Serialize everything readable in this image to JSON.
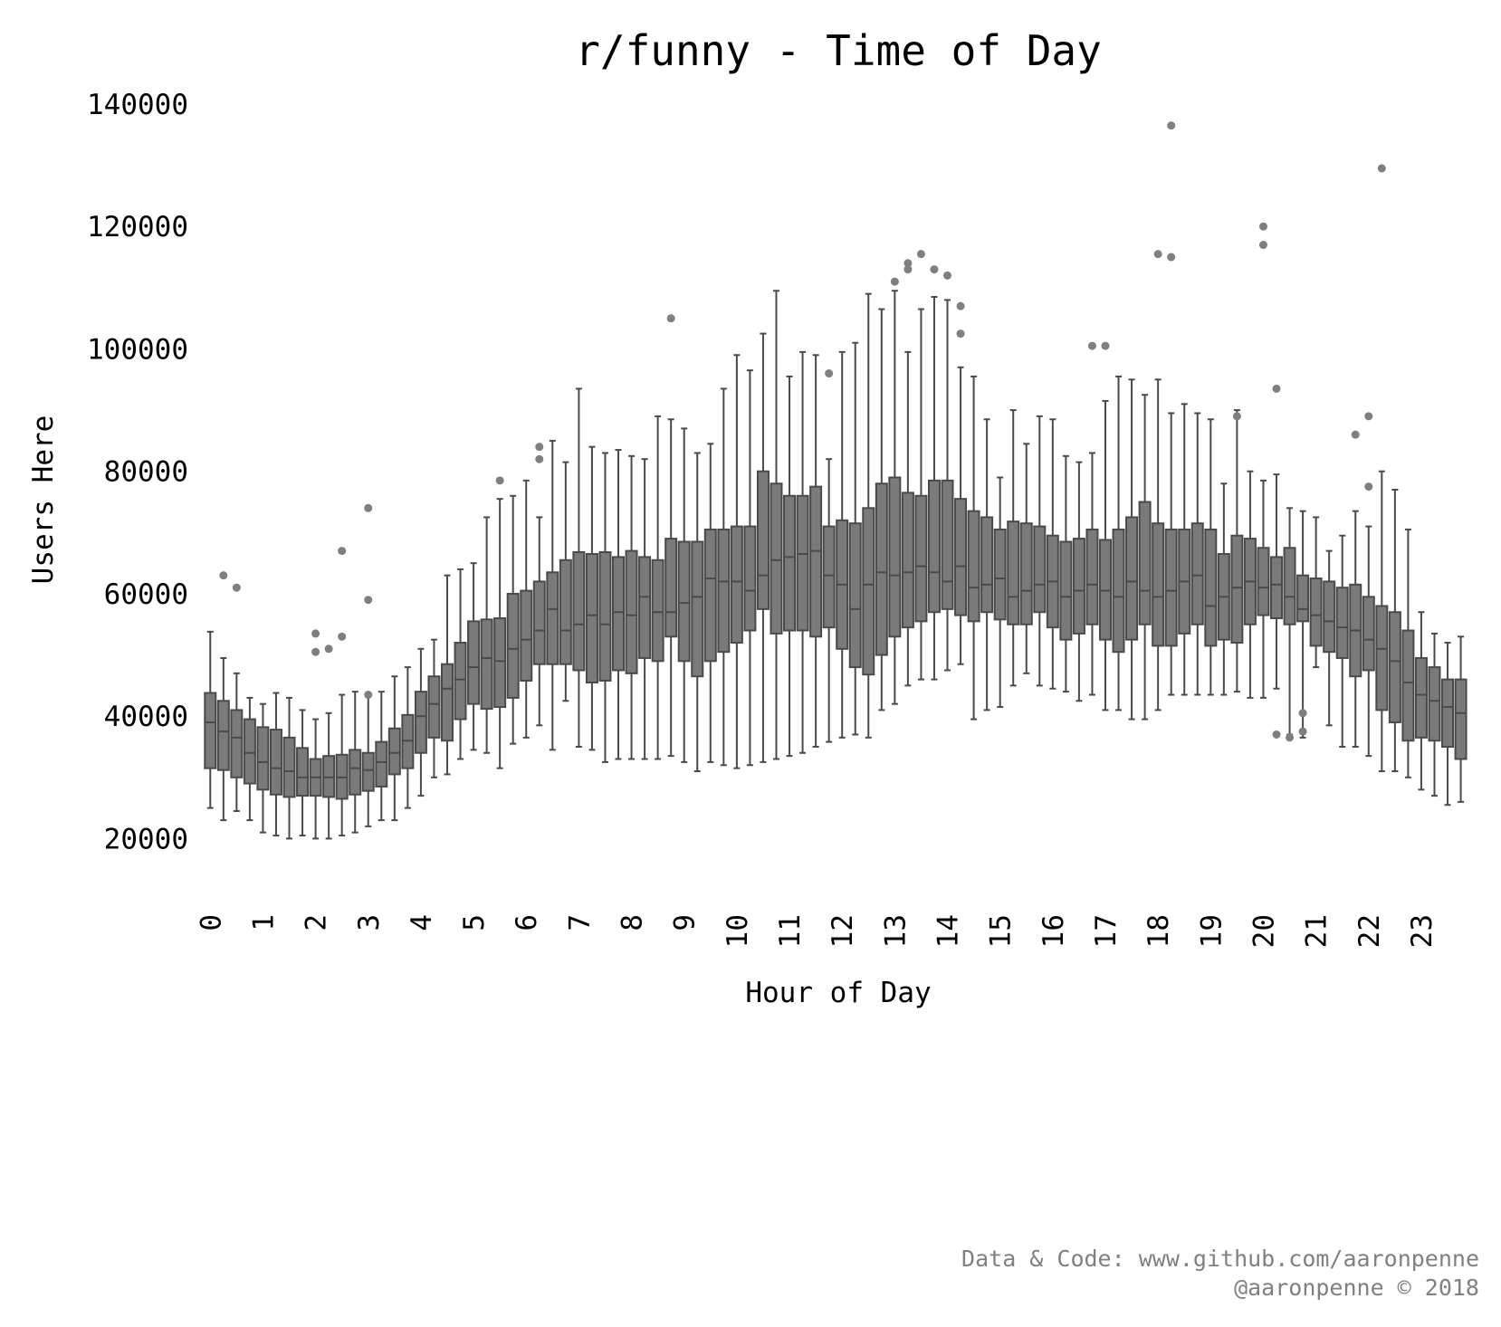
{
  "chart_data": {
    "type": "box",
    "title": "r/funny - Time of Day",
    "xlabel": "Hour of Day",
    "ylabel": "Users Here",
    "ylim": [
      14000,
      140000
    ],
    "yticks": [
      20000,
      40000,
      60000,
      80000,
      100000,
      120000,
      140000
    ],
    "xtick_labels": [
      "0",
      "1",
      "2",
      "3",
      "4",
      "5",
      "6",
      "7",
      "8",
      "9",
      "10",
      "11",
      "12",
      "13",
      "14",
      "15",
      "16",
      "17",
      "18",
      "19",
      "20",
      "21",
      "22",
      "23"
    ],
    "boxes_per_hour": 4,
    "box_color": "#7a7a7a",
    "line_color": "#4a4a4a",
    "outlier_color": "#7f7f7f",
    "grid": false,
    "boxes": [
      [
        25000,
        31500,
        39000,
        43800,
        53800
      ],
      [
        23000,
        31200,
        37500,
        42500,
        49500
      ],
      [
        24500,
        30000,
        36500,
        41000,
        47000
      ],
      [
        23000,
        29000,
        34000,
        39500,
        43000
      ],
      [
        21000,
        28000,
        32500,
        38200,
        42000
      ],
      [
        20500,
        27200,
        31500,
        37800,
        43800
      ],
      [
        20000,
        26800,
        31000,
        36500,
        43000
      ],
      [
        20500,
        27000,
        30000,
        34800,
        41000
      ],
      [
        20000,
        27000,
        30000,
        33000,
        39500
      ],
      [
        20000,
        26800,
        30000,
        33500,
        40500
      ],
      [
        20500,
        26500,
        30000,
        33700,
        43500
      ],
      [
        21000,
        27200,
        31500,
        34500,
        44000
      ],
      [
        22000,
        27800,
        31200,
        34000,
        43500
      ],
      [
        23000,
        28500,
        32500,
        35800,
        44000
      ],
      [
        23000,
        30500,
        34000,
        38000,
        46500
      ],
      [
        25000,
        31500,
        36000,
        40200,
        48000
      ],
      [
        27000,
        34000,
        40000,
        44000,
        51000
      ],
      [
        30000,
        36500,
        42000,
        46500,
        52500
      ],
      [
        30500,
        36000,
        44500,
        48500,
        63000
      ],
      [
        33000,
        39500,
        46000,
        52000,
        64000
      ],
      [
        34500,
        42000,
        48000,
        55500,
        65000
      ],
      [
        34000,
        41200,
        49500,
        55800,
        72500
      ],
      [
        31500,
        41500,
        49000,
        56000,
        75500
      ],
      [
        35500,
        43000,
        51000,
        60000,
        76000
      ],
      [
        36500,
        45800,
        52500,
        60500,
        78500
      ],
      [
        38500,
        48500,
        54000,
        62000,
        72500
      ],
      [
        34500,
        48500,
        57500,
        63500,
        85000
      ],
      [
        42500,
        48500,
        54000,
        65500,
        81500
      ],
      [
        35000,
        47500,
        55000,
        66800,
        93500
      ],
      [
        34500,
        45500,
        56500,
        66500,
        84000
      ],
      [
        32500,
        45800,
        55000,
        66800,
        83000
      ],
      [
        33000,
        47500,
        57000,
        66000,
        83500
      ],
      [
        33000,
        47000,
        56500,
        67000,
        82500
      ],
      [
        33000,
        49500,
        59500,
        66000,
        82000
      ],
      [
        33000,
        49000,
        57000,
        65500,
        89000
      ],
      [
        33500,
        53000,
        57000,
        69000,
        88500
      ],
      [
        32500,
        49000,
        58500,
        68500,
        87000
      ],
      [
        31000,
        46500,
        59500,
        68500,
        83000
      ],
      [
        32500,
        49000,
        62500,
        70500,
        84500
      ],
      [
        32000,
        50500,
        62000,
        70500,
        93500
      ],
      [
        31500,
        52000,
        62000,
        71000,
        99000
      ],
      [
        32000,
        54000,
        60500,
        71000,
        96500
      ],
      [
        32500,
        57500,
        63000,
        80000,
        102500
      ],
      [
        33000,
        53500,
        65500,
        78000,
        109500
      ],
      [
        33500,
        54000,
        66000,
        76000,
        95500
      ],
      [
        34000,
        54000,
        66500,
        76000,
        99500
      ],
      [
        35000,
        53000,
        67000,
        77500,
        99000
      ],
      [
        35800,
        54500,
        63000,
        71000,
        82000
      ],
      [
        36500,
        51000,
        61500,
        72000,
        99500
      ],
      [
        37000,
        48000,
        57500,
        71500,
        101000
      ],
      [
        36500,
        46800,
        61500,
        74000,
        109000
      ],
      [
        41000,
        50000,
        63500,
        78000,
        106500
      ],
      [
        42000,
        53000,
        63000,
        79000,
        109500
      ],
      [
        45000,
        54500,
        63500,
        76500,
        99500
      ],
      [
        46000,
        55500,
        64500,
        76000,
        106500
      ],
      [
        46000,
        57000,
        63500,
        78500,
        108500
      ],
      [
        47500,
        57500,
        62000,
        78500,
        108000
      ],
      [
        48500,
        56500,
        64500,
        75500,
        97000
      ],
      [
        39500,
        55500,
        61000,
        73500,
        95500
      ],
      [
        41000,
        57000,
        61500,
        72500,
        88500
      ],
      [
        41500,
        55800,
        62500,
        70500,
        79000
      ],
      [
        45000,
        55000,
        59500,
        71800,
        90000
      ],
      [
        47000,
        55000,
        60500,
        71500,
        84500
      ],
      [
        45000,
        57000,
        61500,
        71000,
        89000
      ],
      [
        44500,
        54500,
        62000,
        69500,
        88500
      ],
      [
        44000,
        52500,
        59500,
        68500,
        82500
      ],
      [
        42500,
        53500,
        60500,
        69000,
        81500
      ],
      [
        43500,
        55000,
        61500,
        70500,
        83000
      ],
      [
        41000,
        52500,
        60500,
        68800,
        91500
      ],
      [
        41000,
        50500,
        59500,
        70500,
        95500
      ],
      [
        39500,
        52500,
        62000,
        72500,
        95000
      ],
      [
        39500,
        55000,
        60500,
        75000,
        92500
      ],
      [
        41000,
        51500,
        59500,
        71500,
        95000
      ],
      [
        43500,
        51500,
        60500,
        70500,
        89500
      ],
      [
        43500,
        53500,
        62000,
        70500,
        91000
      ],
      [
        43500,
        55000,
        63000,
        71500,
        89500
      ],
      [
        43500,
        51500,
        58000,
        70500,
        88500
      ],
      [
        43500,
        52500,
        59500,
        66500,
        78000
      ],
      [
        44000,
        52000,
        61000,
        69500,
        90000
      ],
      [
        43000,
        55000,
        62000,
        69000,
        80000
      ],
      [
        43000,
        56500,
        61000,
        67500,
        78500
      ],
      [
        44500,
        56000,
        61500,
        66000,
        79500
      ],
      [
        37000,
        55000,
        59500,
        67500,
        74000
      ],
      [
        36500,
        55500,
        57500,
        63000,
        73500
      ],
      [
        48000,
        51500,
        56500,
        62500,
        72500
      ],
      [
        38500,
        50500,
        55500,
        62000,
        67000
      ],
      [
        35000,
        49500,
        54500,
        61000,
        69500
      ],
      [
        35000,
        46500,
        54000,
        61500,
        73500
      ],
      [
        33500,
        47500,
        52500,
        59500,
        71000
      ],
      [
        31000,
        41000,
        51000,
        58000,
        80000
      ],
      [
        31000,
        39000,
        49000,
        57000,
        77000
      ],
      [
        30000,
        36000,
        45500,
        54000,
        70500
      ],
      [
        28000,
        36500,
        43500,
        49500,
        57000
      ],
      [
        27000,
        36000,
        42500,
        48000,
        53500
      ],
      [
        25500,
        35000,
        41500,
        46000,
        52000
      ],
      [
        26000,
        33000,
        40500,
        46000,
        53000
      ]
    ],
    "outliers": [
      [
        1,
        63000
      ],
      [
        2,
        61000
      ],
      [
        8,
        53500
      ],
      [
        8,
        50500
      ],
      [
        9,
        51000
      ],
      [
        10,
        67000
      ],
      [
        10,
        53000
      ],
      [
        12,
        74000
      ],
      [
        12,
        59000
      ],
      [
        12,
        43500
      ],
      [
        22,
        78500
      ],
      [
        25,
        84000
      ],
      [
        25,
        82000
      ],
      [
        35,
        105000
      ],
      [
        47,
        96000
      ],
      [
        52,
        111000
      ],
      [
        53,
        114000
      ],
      [
        53,
        113000
      ],
      [
        54,
        115500
      ],
      [
        55,
        113000
      ],
      [
        56,
        112000
      ],
      [
        57,
        107000
      ],
      [
        57,
        102500
      ],
      [
        67,
        100500
      ],
      [
        68,
        100500
      ],
      [
        72,
        115500
      ],
      [
        73,
        136500
      ],
      [
        73,
        115000
      ],
      [
        78,
        89000
      ],
      [
        80,
        120000
      ],
      [
        80,
        117000
      ],
      [
        81,
        93500
      ],
      [
        81,
        37000
      ],
      [
        82,
        36500
      ],
      [
        83,
        40500
      ],
      [
        83,
        37500
      ],
      [
        87,
        86000
      ],
      [
        88,
        89000
      ],
      [
        88,
        77500
      ],
      [
        89,
        129500
      ]
    ]
  },
  "footer": {
    "line1": "Data & Code: www.github.com/aaronpenne",
    "line2": "@aaronpenne © 2018"
  }
}
